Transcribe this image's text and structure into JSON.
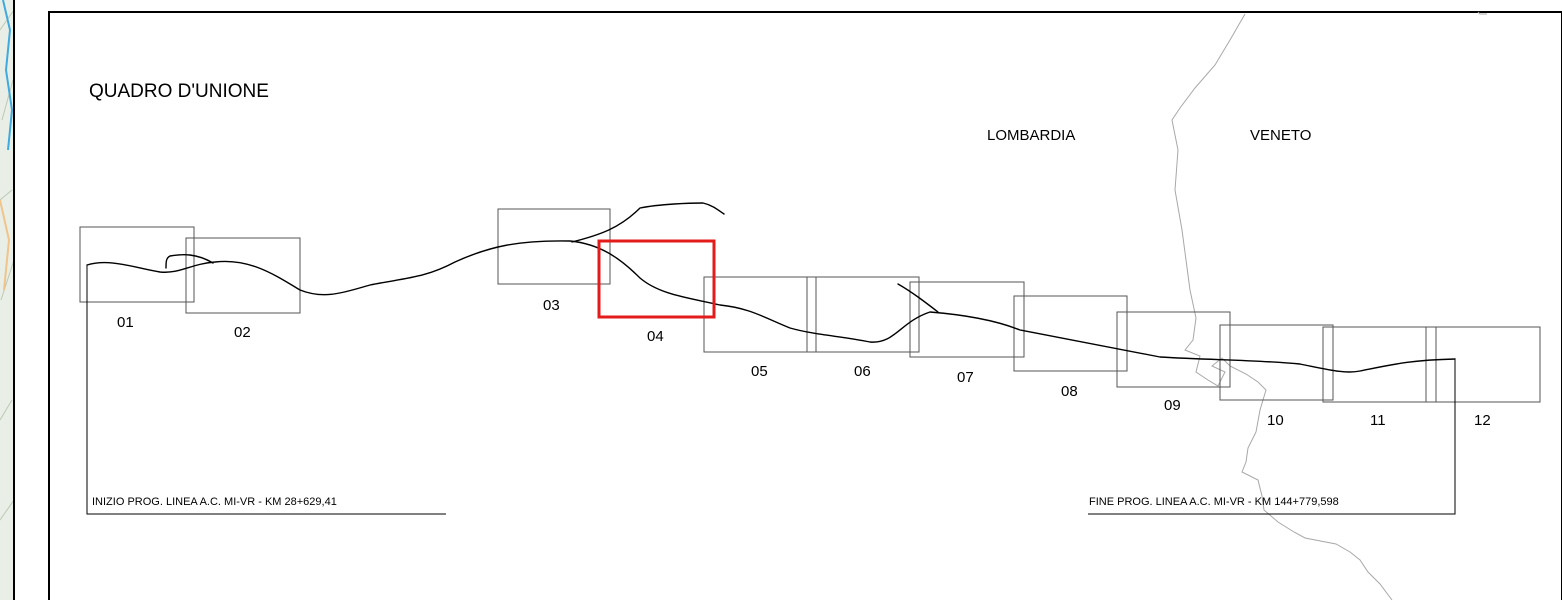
{
  "title": "QUADRO D'UNIONE",
  "regions": {
    "left": "LOMBARDIA",
    "right": "VENETO"
  },
  "sheets": [
    {
      "id": "01",
      "selected": false
    },
    {
      "id": "02",
      "selected": false
    },
    {
      "id": "03",
      "selected": false
    },
    {
      "id": "04",
      "selected": true
    },
    {
      "id": "05",
      "selected": false
    },
    {
      "id": "06",
      "selected": false
    },
    {
      "id": "07",
      "selected": false
    },
    {
      "id": "08",
      "selected": false
    },
    {
      "id": "09",
      "selected": false
    },
    {
      "id": "10",
      "selected": false
    },
    {
      "id": "11",
      "selected": false
    },
    {
      "id": "12",
      "selected": false
    }
  ],
  "start_note": "INIZIO PROG. LINEA A.C. MI-VR - KM 28+629,41",
  "end_note": "FINE PROG. LINEA A.C. MI-VR - KM 144+779,598",
  "colors": {
    "selected_sheet": "#e31b1b",
    "sheet_frame": "#555555",
    "rail_line": "#000000",
    "border_line": "#a8a8a8",
    "background_map": "#8fd3f0"
  }
}
